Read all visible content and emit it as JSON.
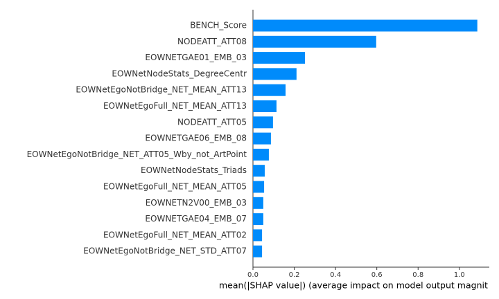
{
  "chart_data": {
    "type": "barh",
    "x_label": "mean(|SHAP value|) (average impact on model output magnit",
    "categories": [
      "BENCH_Score",
      "NODEATT_ATT08",
      "EOWNETGAE01_EMB_03",
      "EOWNetNodeStats_DegreeCentr",
      "EOWNetEgoNotBridge_NET_MEAN_ATT13",
      "EOWNetEgoFull_NET_MEAN_ATT13",
      "NODEATT_ATT05",
      "EOWNETGAE06_EMB_08",
      "EOWNetEgoNotBridge_NET_ATT05_Wby_not_ArtPoint",
      "EOWNetNodeStats_Triads",
      "EOWNetEgoFull_NET_MEAN_ATT05",
      "EOWNETN2V00_EMB_03",
      "EOWNETGAE04_EMB_07",
      "EOWNetEgoFull_NET_MEAN_ATT02",
      "EOWNetEgoNotBridge_NET_STD_ATT07"
    ],
    "values": [
      1.087,
      0.597,
      0.252,
      0.211,
      0.158,
      0.114,
      0.097,
      0.087,
      0.077,
      0.057,
      0.054,
      0.05,
      0.05,
      0.044,
      0.044
    ],
    "color": "#008bfb",
    "xlim": [
      0,
      1.145
    ],
    "xticks": [
      {
        "value": 0,
        "label": "0.0"
      },
      0.2,
      0.4,
      0.6,
      0.8,
      {
        "value": 1,
        "label": "1.0"
      }
    ]
  }
}
